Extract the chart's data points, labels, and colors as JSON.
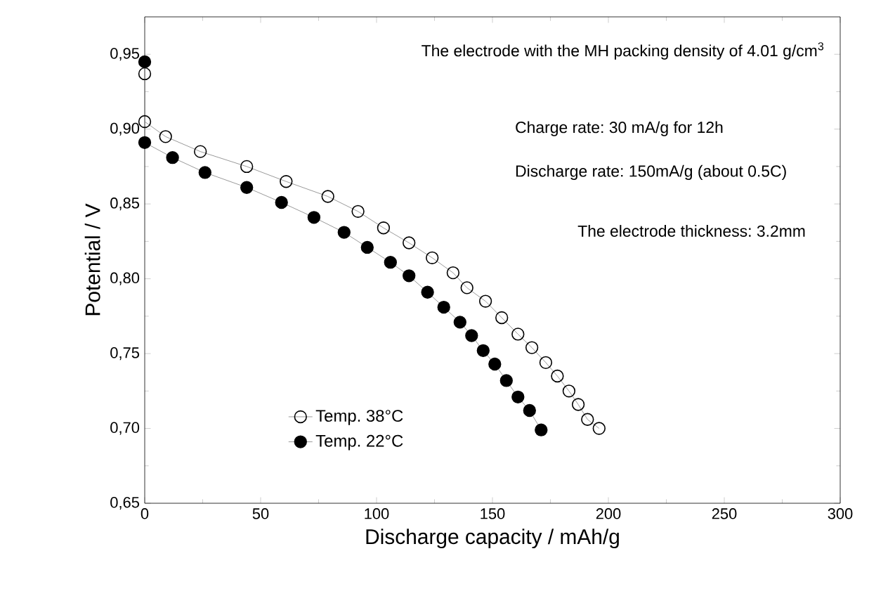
{
  "chart_data": {
    "type": "line",
    "xlabel": "Discharge capacity / mAh/g",
    "ylabel": "Potential / V",
    "xlim": [
      0,
      300
    ],
    "xticks": [
      0,
      50,
      100,
      150,
      200,
      250,
      300
    ],
    "ylim": [
      0.65,
      0.975
    ],
    "yticks": [
      {
        "value": 0.65,
        "label": "0,65"
      },
      {
        "value": 0.7,
        "label": "0,70"
      },
      {
        "value": 0.75,
        "label": "0,75"
      },
      {
        "value": 0.8,
        "label": "0,80"
      },
      {
        "value": 0.85,
        "label": "0,85"
      },
      {
        "value": 0.9,
        "label": "0,90"
      },
      {
        "value": 0.95,
        "label": "0,95"
      }
    ],
    "marker": "circle",
    "line_style": "solid",
    "legend": "bottom left",
    "grid": false,
    "annotations": [
      "The electrode with the MH packing density of 4.01 g/cm$^{3}$",
      "Charge rate: 30 mA/g for 12h",
      "Discharge rate: 150mA/g (about 0.5C)",
      "The electrode thickness: 3.2mm"
    ],
    "series": [
      {
        "name": "Temp. 38°C",
        "color": "#000000",
        "x": [
          0,
          0,
          9,
          24,
          44,
          61,
          79,
          92,
          103,
          114,
          124,
          133,
          139,
          147,
          154,
          161,
          167,
          173,
          178,
          183,
          187,
          191,
          196
        ],
        "values": [
          0.937,
          0.905,
          0.895,
          0.885,
          0.875,
          0.865,
          0.855,
          0.845,
          0.834,
          0.824,
          0.814,
          0.804,
          0.794,
          0.785,
          0.774,
          0.763,
          0.754,
          0.744,
          0.735,
          0.725,
          0.716,
          0.706,
          0.7
        ]
      },
      {
        "name": "Temp. 22°C",
        "color": "#000000",
        "x": [
          0,
          0,
          12,
          26,
          44,
          59,
          73,
          86,
          96,
          106,
          114,
          122,
          129,
          136,
          141,
          146,
          151,
          156,
          161,
          166,
          171
        ],
        "values": [
          0.945,
          0.891,
          0.881,
          0.871,
          0.861,
          0.851,
          0.841,
          0.831,
          0.821,
          0.811,
          0.802,
          0.791,
          0.781,
          0.771,
          0.762,
          0.752,
          0.743,
          0.732,
          0.721,
          0.712,
          0.699
        ]
      }
    ]
  }
}
